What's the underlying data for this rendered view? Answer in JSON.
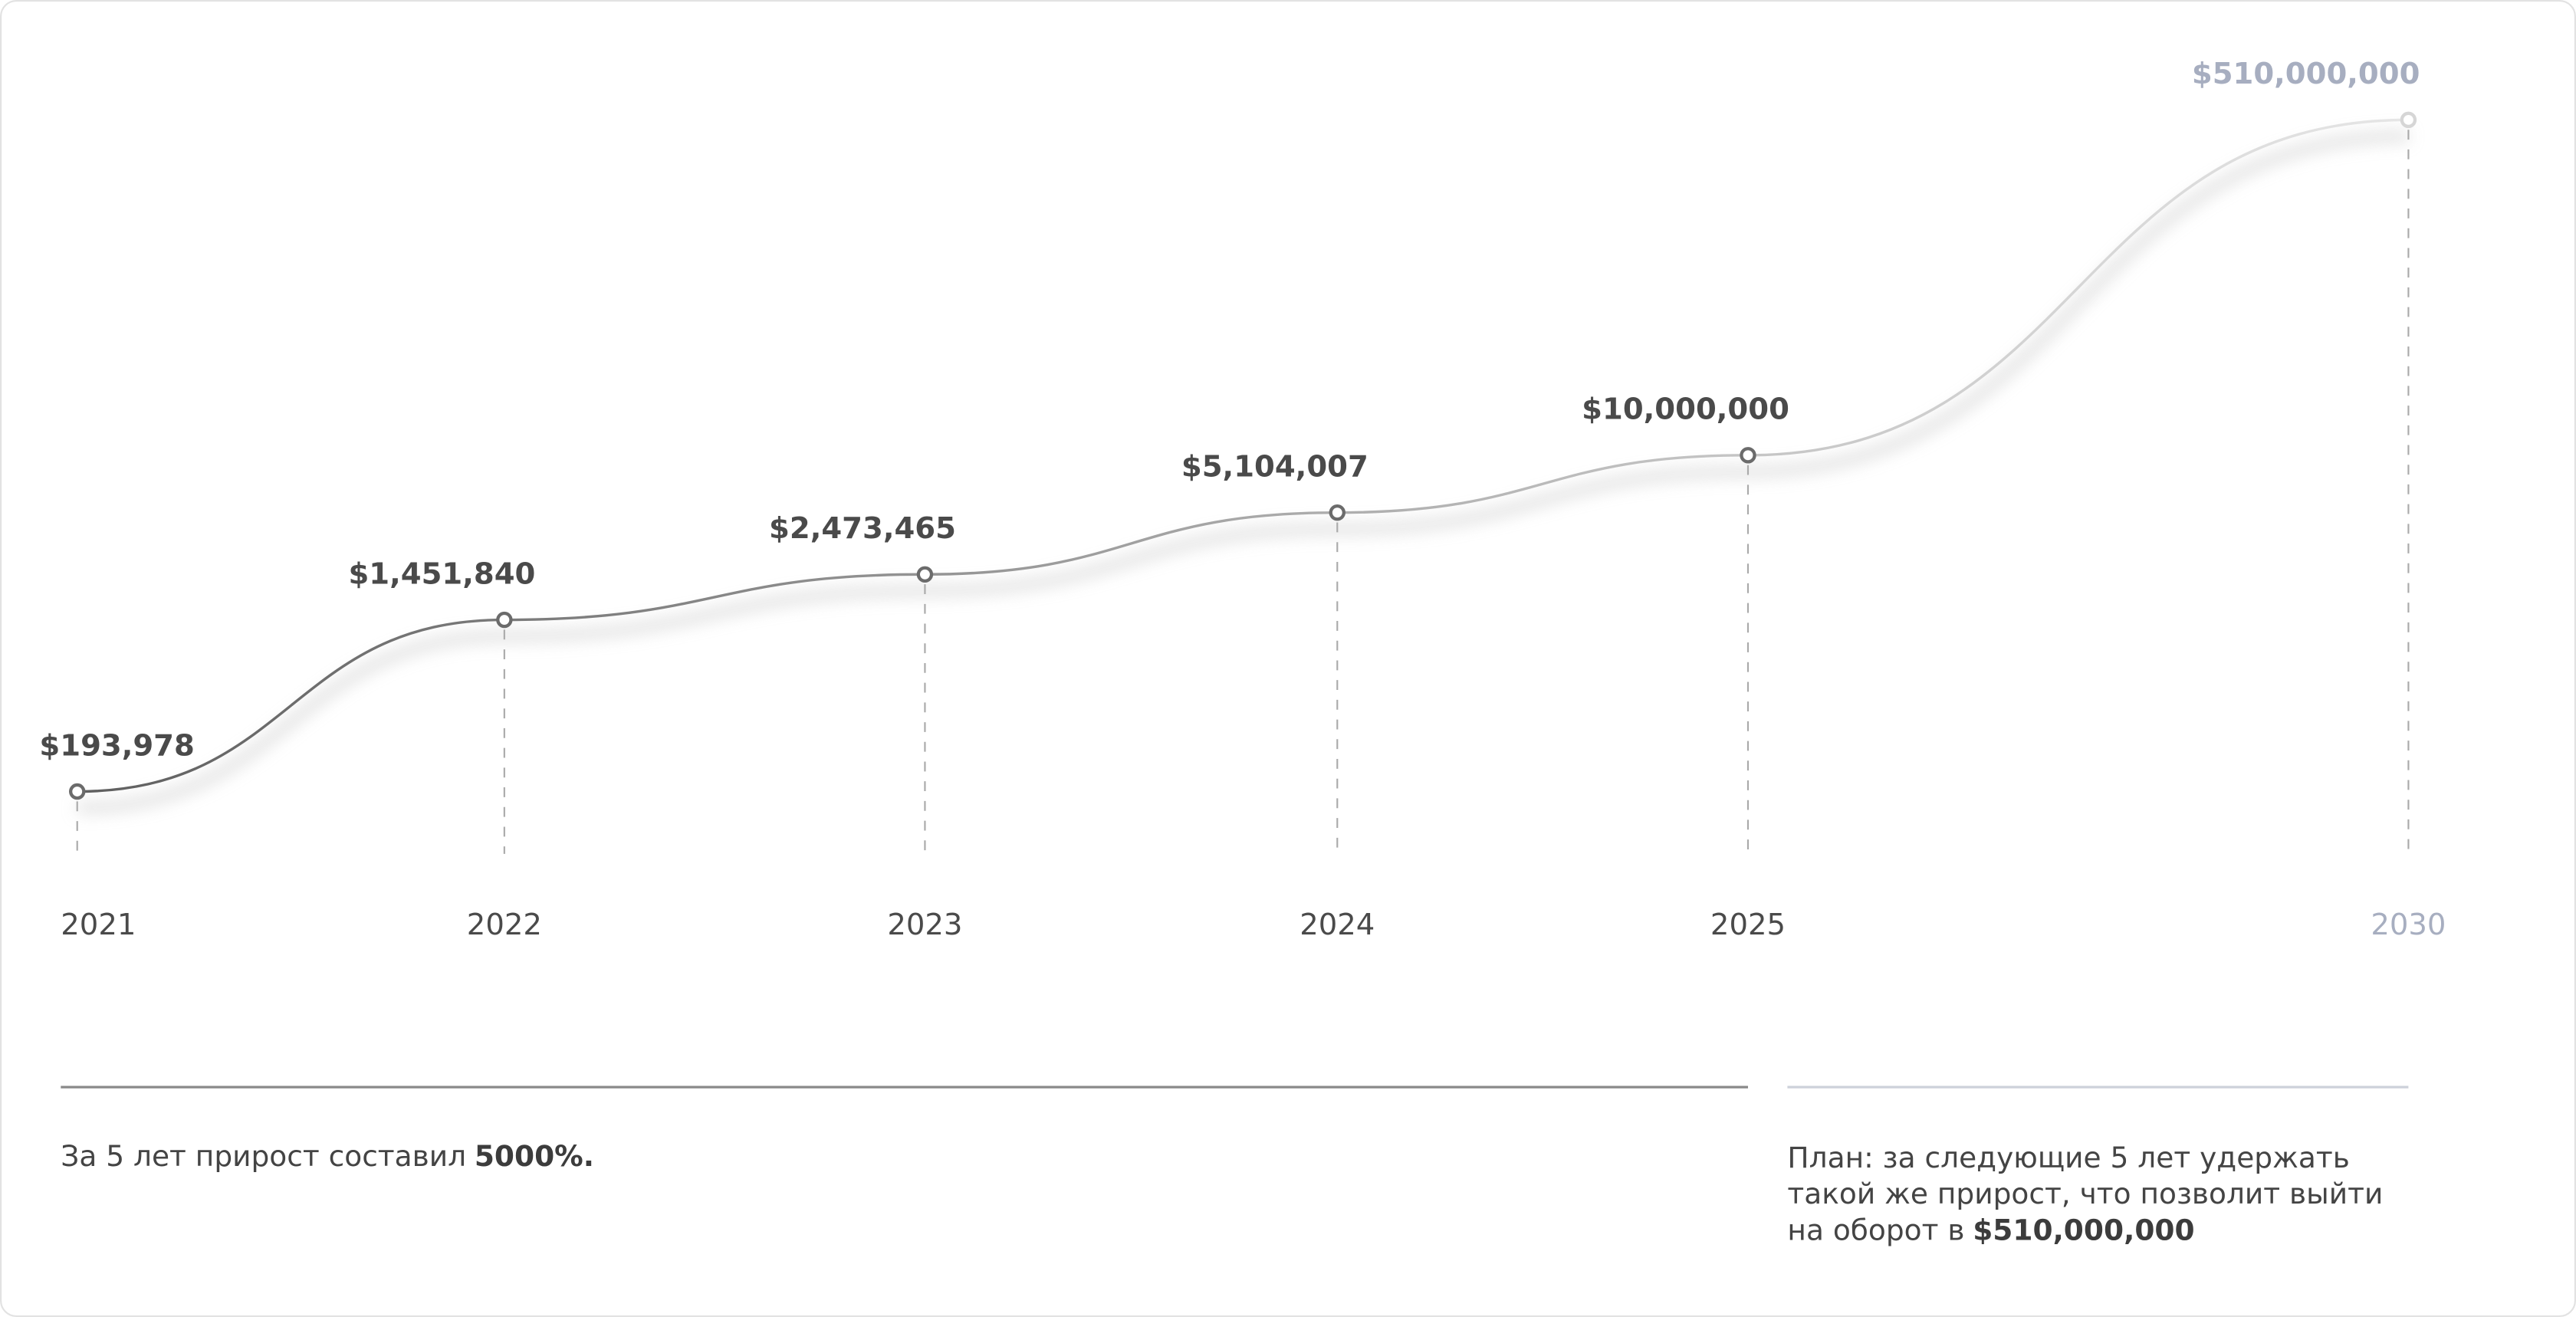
{
  "chart_data": {
    "type": "line",
    "categories": [
      "2021",
      "2022",
      "2023",
      "2024",
      "2025",
      "2030"
    ],
    "series": [
      {
        "values": [
          193978,
          1451840,
          2473465,
          5104007,
          10000000,
          510000000
        ],
        "value_labels": [
          "$193,978",
          "$1,451,840",
          "$2,473,465",
          "$5,104,007",
          "$10,000,000",
          "$510,000,000"
        ],
        "color": "#6b6b6b"
      }
    ],
    "log_scale": true
  },
  "summary": {
    "text": "За 5 лет прирост составил",
    "highlight": "5000%."
  },
  "plan": {
    "text": "План: за следующие 5 лет удержать такой же прирост, что позволит выйти на оборот в",
    "highlight": "$510,000,000"
  }
}
